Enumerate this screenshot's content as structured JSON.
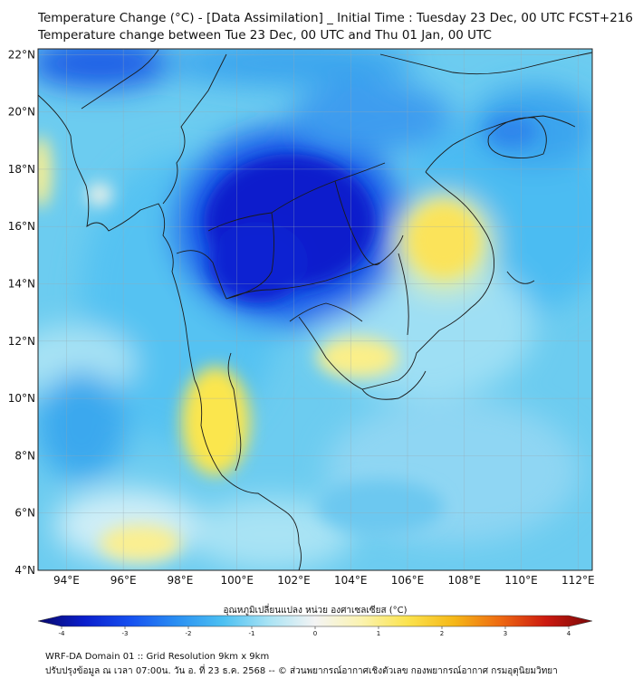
{
  "header": {
    "title_line1": "Temperature Change (°C) - [Data Assimilation] _ Initial Time : Tuesday 23 Dec, 00 UTC FCST+216",
    "title_line2": "Temperature change between Tue 23 Dec, 00 UTC and Thu 01 Jan, 00 UTC"
  },
  "map": {
    "lon_labels": [
      "94°E",
      "96°E",
      "98°E",
      "100°E",
      "102°E",
      "104°E",
      "106°E",
      "108°E",
      "110°E",
      "112°E"
    ],
    "lat_labels": [
      "22°N",
      "20°N",
      "18°N",
      "16°N",
      "14°N",
      "12°N",
      "10°N",
      "8°N",
      "6°N",
      "4°N"
    ],
    "lon_range": [
      93,
      112.5
    ],
    "lat_range": [
      4,
      22.2
    ]
  },
  "colorbar": {
    "label": "อุณหภูมิเปลี่ยนแปลง หน่วย องศาเซลเซียส (°C)",
    "ticks": [
      "-4",
      "-3",
      "-2",
      "-1",
      "0",
      "1",
      "2",
      "3",
      "4"
    ],
    "range": [
      -4,
      4
    ],
    "colors": [
      "#08086b",
      "#0a1ecc",
      "#1650f0",
      "#2a8ff2",
      "#4cc0f2",
      "#a9e3f4",
      "#f4f4f4",
      "#fbf3b0",
      "#fbe34e",
      "#f5b818",
      "#ee6a12",
      "#cc1a10",
      "#7a0808"
    ]
  },
  "footer": {
    "line1": "WRF-DA Domain 01 :: Grid Resolution 9km x 9km",
    "line2": "ปรับปรุงข้อมูล ณ เวลา 07:00น. วัน อ. ที่ 23 ธ.ค. 2568 -- © ส่วนพยากรณ์อากาศเชิงตัวเลข กองพยากรณ์อากาศ กรมอุตุนิยมวิทยา"
  }
}
